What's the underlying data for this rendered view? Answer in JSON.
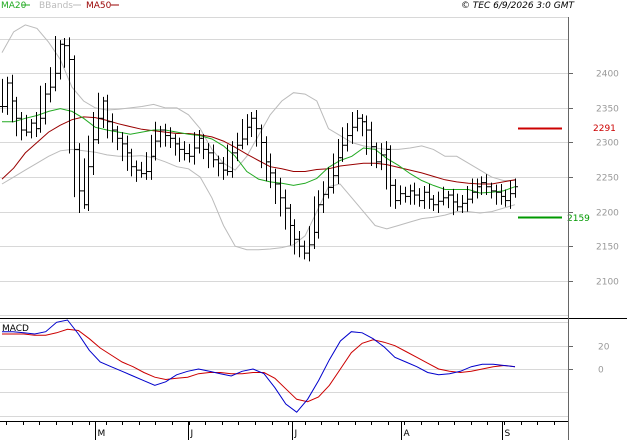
{
  "header": {
    "legend": [
      {
        "label": "MA20",
        "color": "#22aa22"
      },
      {
        "label": "BBands",
        "color": "#bbbbbb"
      },
      {
        "label": "MA50",
        "color": "#990000"
      }
    ],
    "timestamp": "© TEC 6/9/2026 3:0 GMT"
  },
  "chart_data": [
    {
      "type": "ohlc",
      "title": "",
      "y_axis": {
        "ticks": [
          "2400",
          "2350",
          "2300",
          "2250",
          "2200",
          "2150",
          "2100"
        ],
        "ylim": [
          2065,
          2480
        ]
      },
      "x_axis": {
        "ticks": [
          "M",
          "J",
          "J",
          "A",
          "S"
        ]
      },
      "grid": true,
      "series": [
        {
          "name": "Price",
          "type": "ohlc",
          "color": "#000000",
          "values": [
            2352,
            2386,
            2360,
            2335,
            2318,
            2315,
            2328,
            2320,
            2335,
            2370,
            2380,
            2400,
            2442,
            2440,
            2420,
            2290,
            2230,
            2210,
            2265,
            2304,
            2335,
            2360,
            2330,
            2318,
            2306,
            2298,
            2285,
            2265,
            2260,
            2255,
            2258,
            2280,
            2302,
            2318,
            2310,
            2306,
            2298,
            2290,
            2284,
            2280,
            2292,
            2306,
            2290,
            2285,
            2275,
            2270,
            2260,
            2258,
            2285,
            2296,
            2305,
            2322,
            2335,
            2320,
            2300,
            2272,
            2256,
            2240,
            2220,
            2205,
            2180,
            2160,
            2150,
            2140,
            2152,
            2170,
            2210,
            2225,
            2235,
            2252,
            2278,
            2296,
            2310,
            2322,
            2335,
            2330,
            2318,
            2294,
            2272,
            2282,
            2290,
            2238,
            2216,
            2226,
            2222,
            2230,
            2224,
            2216,
            2228,
            2218,
            2210,
            2215,
            2220,
            2224,
            2214,
            2207,
            2212,
            2218,
            2228,
            2236,
            2242,
            2236,
            2230,
            2228,
            2222,
            2216,
            2226,
            2236
          ]
        },
        {
          "name": "MA20",
          "type": "line",
          "color": "#22aa22",
          "values": [
            2330,
            2330,
            2335,
            2339,
            2345,
            2349,
            2345,
            2335,
            2322,
            2318,
            2315,
            2312,
            2315,
            2318,
            2318,
            2315,
            2312,
            2310,
            2305,
            2295,
            2280,
            2258,
            2247,
            2243,
            2241,
            2238,
            2241,
            2248,
            2264,
            2274,
            2280,
            2292,
            2290,
            2277,
            2267,
            2255,
            2245,
            2238,
            2232,
            2232,
            2232,
            2227,
            2228,
            2230,
            2236
          ]
        },
        {
          "name": "MA50",
          "type": "line",
          "color": "#990000",
          "values": [
            2247,
            2263,
            2285,
            2300,
            2315,
            2325,
            2333,
            2337,
            2336,
            2332,
            2327,
            2323,
            2319,
            2317,
            2315,
            2313,
            2313,
            2311,
            2308,
            2302,
            2293,
            2283,
            2274,
            2265,
            2262,
            2258,
            2258,
            2261,
            2262,
            2266,
            2268,
            2270,
            2270,
            2268,
            2264,
            2260,
            2256,
            2251,
            2246,
            2243,
            2241,
            2240,
            2240,
            2243,
            2246
          ]
        },
        {
          "name": "Upper BBand",
          "type": "line",
          "color": "#bbbbbb",
          "values": [
            2430,
            2460,
            2470,
            2465,
            2445,
            2420,
            2380,
            2360,
            2350,
            2347,
            2348,
            2350,
            2352,
            2355,
            2350,
            2350,
            2340,
            2320,
            2290,
            2270,
            2260,
            2280,
            2310,
            2340,
            2360,
            2372,
            2370,
            2360,
            2320,
            2310,
            2300,
            2295,
            2292,
            2290,
            2290,
            2292,
            2295,
            2290,
            2280,
            2280,
            2270,
            2260,
            2250,
            2245,
            2245
          ]
        },
        {
          "name": "Lower BBand",
          "type": "line",
          "color": "#bbbbbb",
          "values": [
            2240,
            2250,
            2260,
            2270,
            2280,
            2288,
            2290,
            2288,
            2286,
            2282,
            2280,
            2280,
            2281,
            2278,
            2272,
            2265,
            2262,
            2250,
            2220,
            2180,
            2150,
            2145,
            2145,
            2146,
            2148,
            2152,
            2165,
            2200,
            2236,
            2240,
            2220,
            2200,
            2180,
            2175,
            2180,
            2185,
            2190,
            2192,
            2195,
            2200,
            2200,
            2198,
            2200,
            2205,
            2210
          ]
        }
      ],
      "annotations": [
        {
          "label": "2291",
          "value": 2291,
          "color": "#cc0000"
        },
        {
          "label": "2159",
          "value": 2159,
          "color": "#009900"
        }
      ]
    },
    {
      "type": "line",
      "title": "MACD",
      "y_axis": {
        "ticks": [
          "20",
          "0"
        ],
        "ylim": [
          -42,
          42
        ]
      },
      "series": [
        {
          "name": "MACD",
          "color": "#0000cc",
          "values": [
            32,
            32,
            31,
            30,
            32,
            40,
            42,
            30,
            16,
            6,
            2,
            -2,
            -6,
            -10,
            -14,
            -11,
            -5,
            -2,
            0,
            -2,
            -4,
            -6,
            -2,
            0,
            -4,
            -16,
            -30,
            -37,
            -26,
            -10,
            8,
            24,
            32,
            31,
            26,
            19,
            10,
            6,
            2,
            -3,
            -5,
            -4,
            -2,
            2,
            4,
            4,
            3,
            2
          ]
        },
        {
          "name": "Signal",
          "color": "#cc0000",
          "values": [
            30,
            30,
            30,
            29,
            29,
            31,
            34,
            33,
            26,
            18,
            12,
            6,
            2,
            -3,
            -7,
            -9,
            -8,
            -7,
            -4,
            -3,
            -3,
            -4,
            -4,
            -3,
            -3,
            -8,
            -17,
            -26,
            -28,
            -24,
            -14,
            0,
            14,
            22,
            25,
            23,
            20,
            15,
            10,
            5,
            0,
            -2,
            -3,
            -2,
            0,
            2,
            3,
            2
          ]
        }
      ]
    }
  ]
}
